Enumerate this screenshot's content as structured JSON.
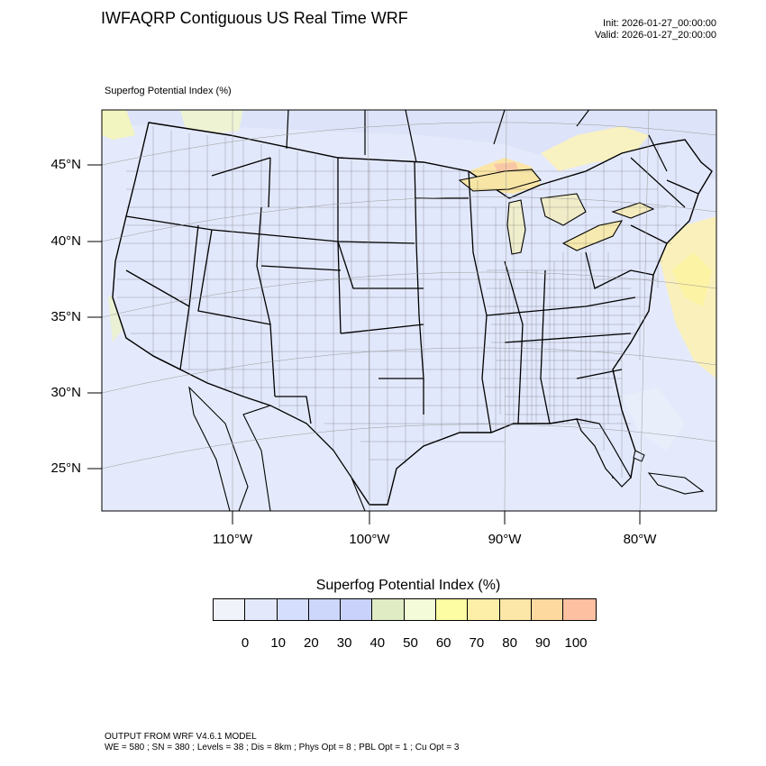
{
  "header": {
    "title": "IWFAQRP Contiguous US Real Time WRF",
    "init": "Init: 2026-01-27_00:00:00",
    "valid": "Valid: 2026-01-27_20:00:00"
  },
  "field_label": "Superfog Potential Index   (%)",
  "lat_labels": [
    "45°N",
    "40°N",
    "35°N",
    "30°N",
    "25°N"
  ],
  "lon_labels": [
    "110°W",
    "100°W",
    "90°W",
    "80°W"
  ],
  "colorbar": {
    "title": "Superfog Potential Index  (%)",
    "colors": [
      "#f0f3f9",
      "#e3e9fb",
      "#d5defc",
      "#cdd7fc",
      "#c9d2fb",
      "#dfecc4",
      "#f3fbd8",
      "#fdfda4",
      "#fdeea8",
      "#fde7a8",
      "#fdd9a0",
      "#fdc0a0"
    ],
    "ticks": [
      "0",
      "10",
      "20",
      "30",
      "40",
      "50",
      "60",
      "70",
      "80",
      "90",
      "100"
    ]
  },
  "footer": {
    "line1": "OUTPUT FROM WRF V4.6.1 MODEL",
    "line2": "WE = 580 ; SN = 380 ; Levels = 38 ; Dis = 8km ; Phys Opt = 8 ; PBL Opt = 1 ; Cu Opt = 3"
  }
}
